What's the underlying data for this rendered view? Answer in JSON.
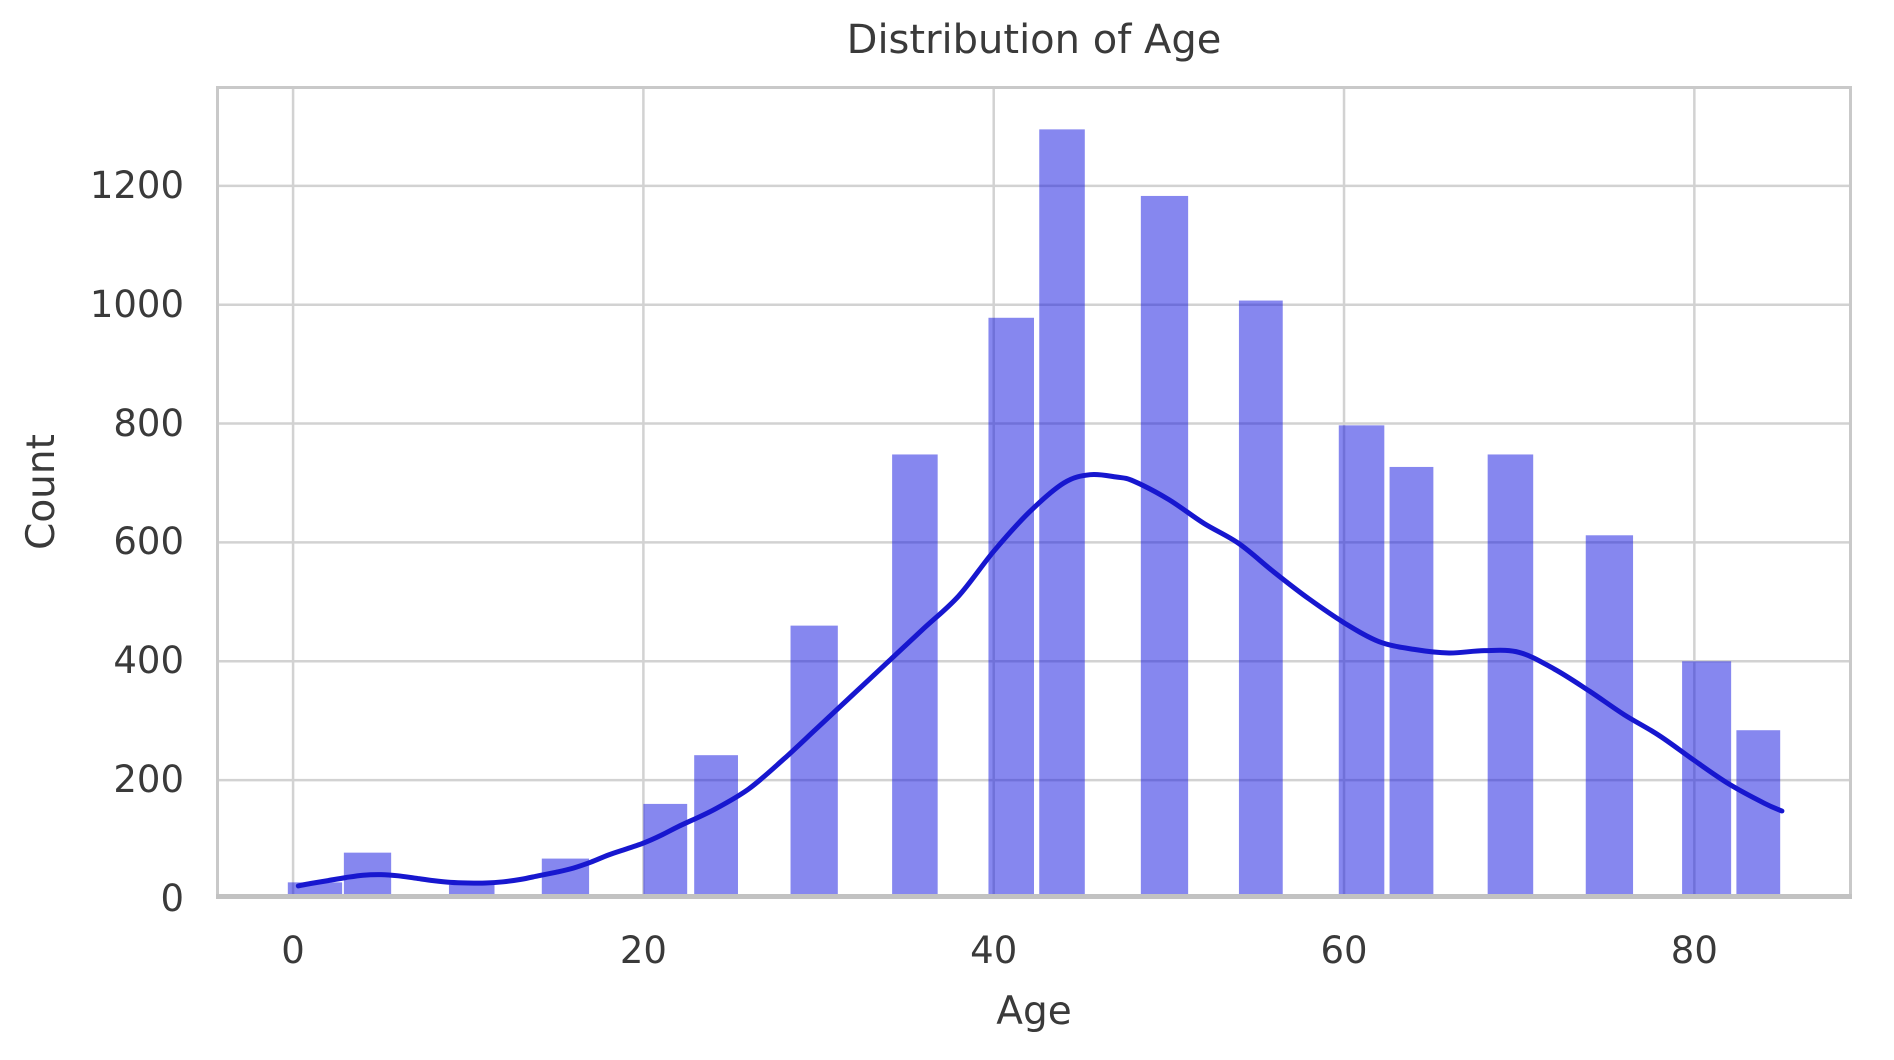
{
  "chart_data": {
    "type": "bar",
    "subtype": "histogram_with_kde",
    "title": "Distribution of Age",
    "xlabel": "Age",
    "ylabel": "Count",
    "xticks": [
      0,
      20,
      40,
      60,
      80
    ],
    "yticks": [
      0,
      200,
      400,
      600,
      800,
      1000,
      1200
    ],
    "xlim": [
      -4.4,
      89.0
    ],
    "ylim": [
      0,
      1368
    ],
    "grid": true,
    "legend": "none",
    "bars": [
      {
        "x0": -0.3,
        "x1": 2.8,
        "count": 28
      },
      {
        "x0": 2.9,
        "x1": 5.6,
        "count": 78
      },
      {
        "x0": 8.9,
        "x1": 11.5,
        "count": 24
      },
      {
        "x0": 14.2,
        "x1": 16.9,
        "count": 68
      },
      {
        "x0": 20.0,
        "x1": 22.5,
        "count": 160
      },
      {
        "x0": 22.9,
        "x1": 25.4,
        "count": 242
      },
      {
        "x0": 28.4,
        "x1": 31.1,
        "count": 460
      },
      {
        "x0": 34.2,
        "x1": 36.8,
        "count": 748
      },
      {
        "x0": 39.7,
        "x1": 42.3,
        "count": 978
      },
      {
        "x0": 42.6,
        "x1": 45.2,
        "count": 1295
      },
      {
        "x0": 48.4,
        "x1": 51.1,
        "count": 1183
      },
      {
        "x0": 54.0,
        "x1": 56.5,
        "count": 1007
      },
      {
        "x0": 59.7,
        "x1": 62.3,
        "count": 797
      },
      {
        "x0": 62.6,
        "x1": 65.1,
        "count": 727
      },
      {
        "x0": 68.2,
        "x1": 70.8,
        "count": 748
      },
      {
        "x0": 73.8,
        "x1": 76.5,
        "count": 612
      },
      {
        "x0": 79.3,
        "x1": 82.1,
        "count": 400
      },
      {
        "x0": 82.4,
        "x1": 84.9,
        "count": 284
      }
    ],
    "kde": [
      [
        0.3,
        22
      ],
      [
        1,
        26
      ],
      [
        2,
        31
      ],
      [
        3,
        36
      ],
      [
        4,
        40
      ],
      [
        5,
        41
      ],
      [
        6,
        39
      ],
      [
        7,
        35
      ],
      [
        8,
        31
      ],
      [
        9,
        28
      ],
      [
        10,
        27
      ],
      [
        11,
        27
      ],
      [
        12,
        29
      ],
      [
        13,
        33
      ],
      [
        14,
        39
      ],
      [
        15,
        45
      ],
      [
        16,
        52
      ],
      [
        17,
        62
      ],
      [
        18,
        74
      ],
      [
        19,
        84
      ],
      [
        20,
        94
      ],
      [
        21,
        107
      ],
      [
        22,
        122
      ],
      [
        24,
        150
      ],
      [
        26,
        185
      ],
      [
        28,
        235
      ],
      [
        30,
        290
      ],
      [
        32,
        345
      ],
      [
        34,
        400
      ],
      [
        36,
        455
      ],
      [
        38,
        510
      ],
      [
        40,
        585
      ],
      [
        42,
        650
      ],
      [
        44,
        700
      ],
      [
        45.5,
        714
      ],
      [
        47,
        710
      ],
      [
        48,
        703
      ],
      [
        50,
        672
      ],
      [
        52,
        632
      ],
      [
        54,
        598
      ],
      [
        56,
        550
      ],
      [
        58,
        505
      ],
      [
        60,
        465
      ],
      [
        62,
        433
      ],
      [
        64,
        420
      ],
      [
        66,
        414
      ],
      [
        68,
        418
      ],
      [
        70,
        415
      ],
      [
        72,
        387
      ],
      [
        74,
        350
      ],
      [
        76,
        310
      ],
      [
        78,
        275
      ],
      [
        80,
        233
      ],
      [
        82,
        193
      ],
      [
        84,
        161
      ],
      [
        85,
        148
      ]
    ],
    "colors": {
      "bar_fill": "#0d10e0",
      "bar_opacity": 0.5,
      "kde_line": "#1717cf",
      "grid_line": "#d2d2d2",
      "spine": "#c9c9c9",
      "bottom_spine": "#c2c2c2",
      "text": "#3a3a3a",
      "background": "#ffffff"
    }
  }
}
